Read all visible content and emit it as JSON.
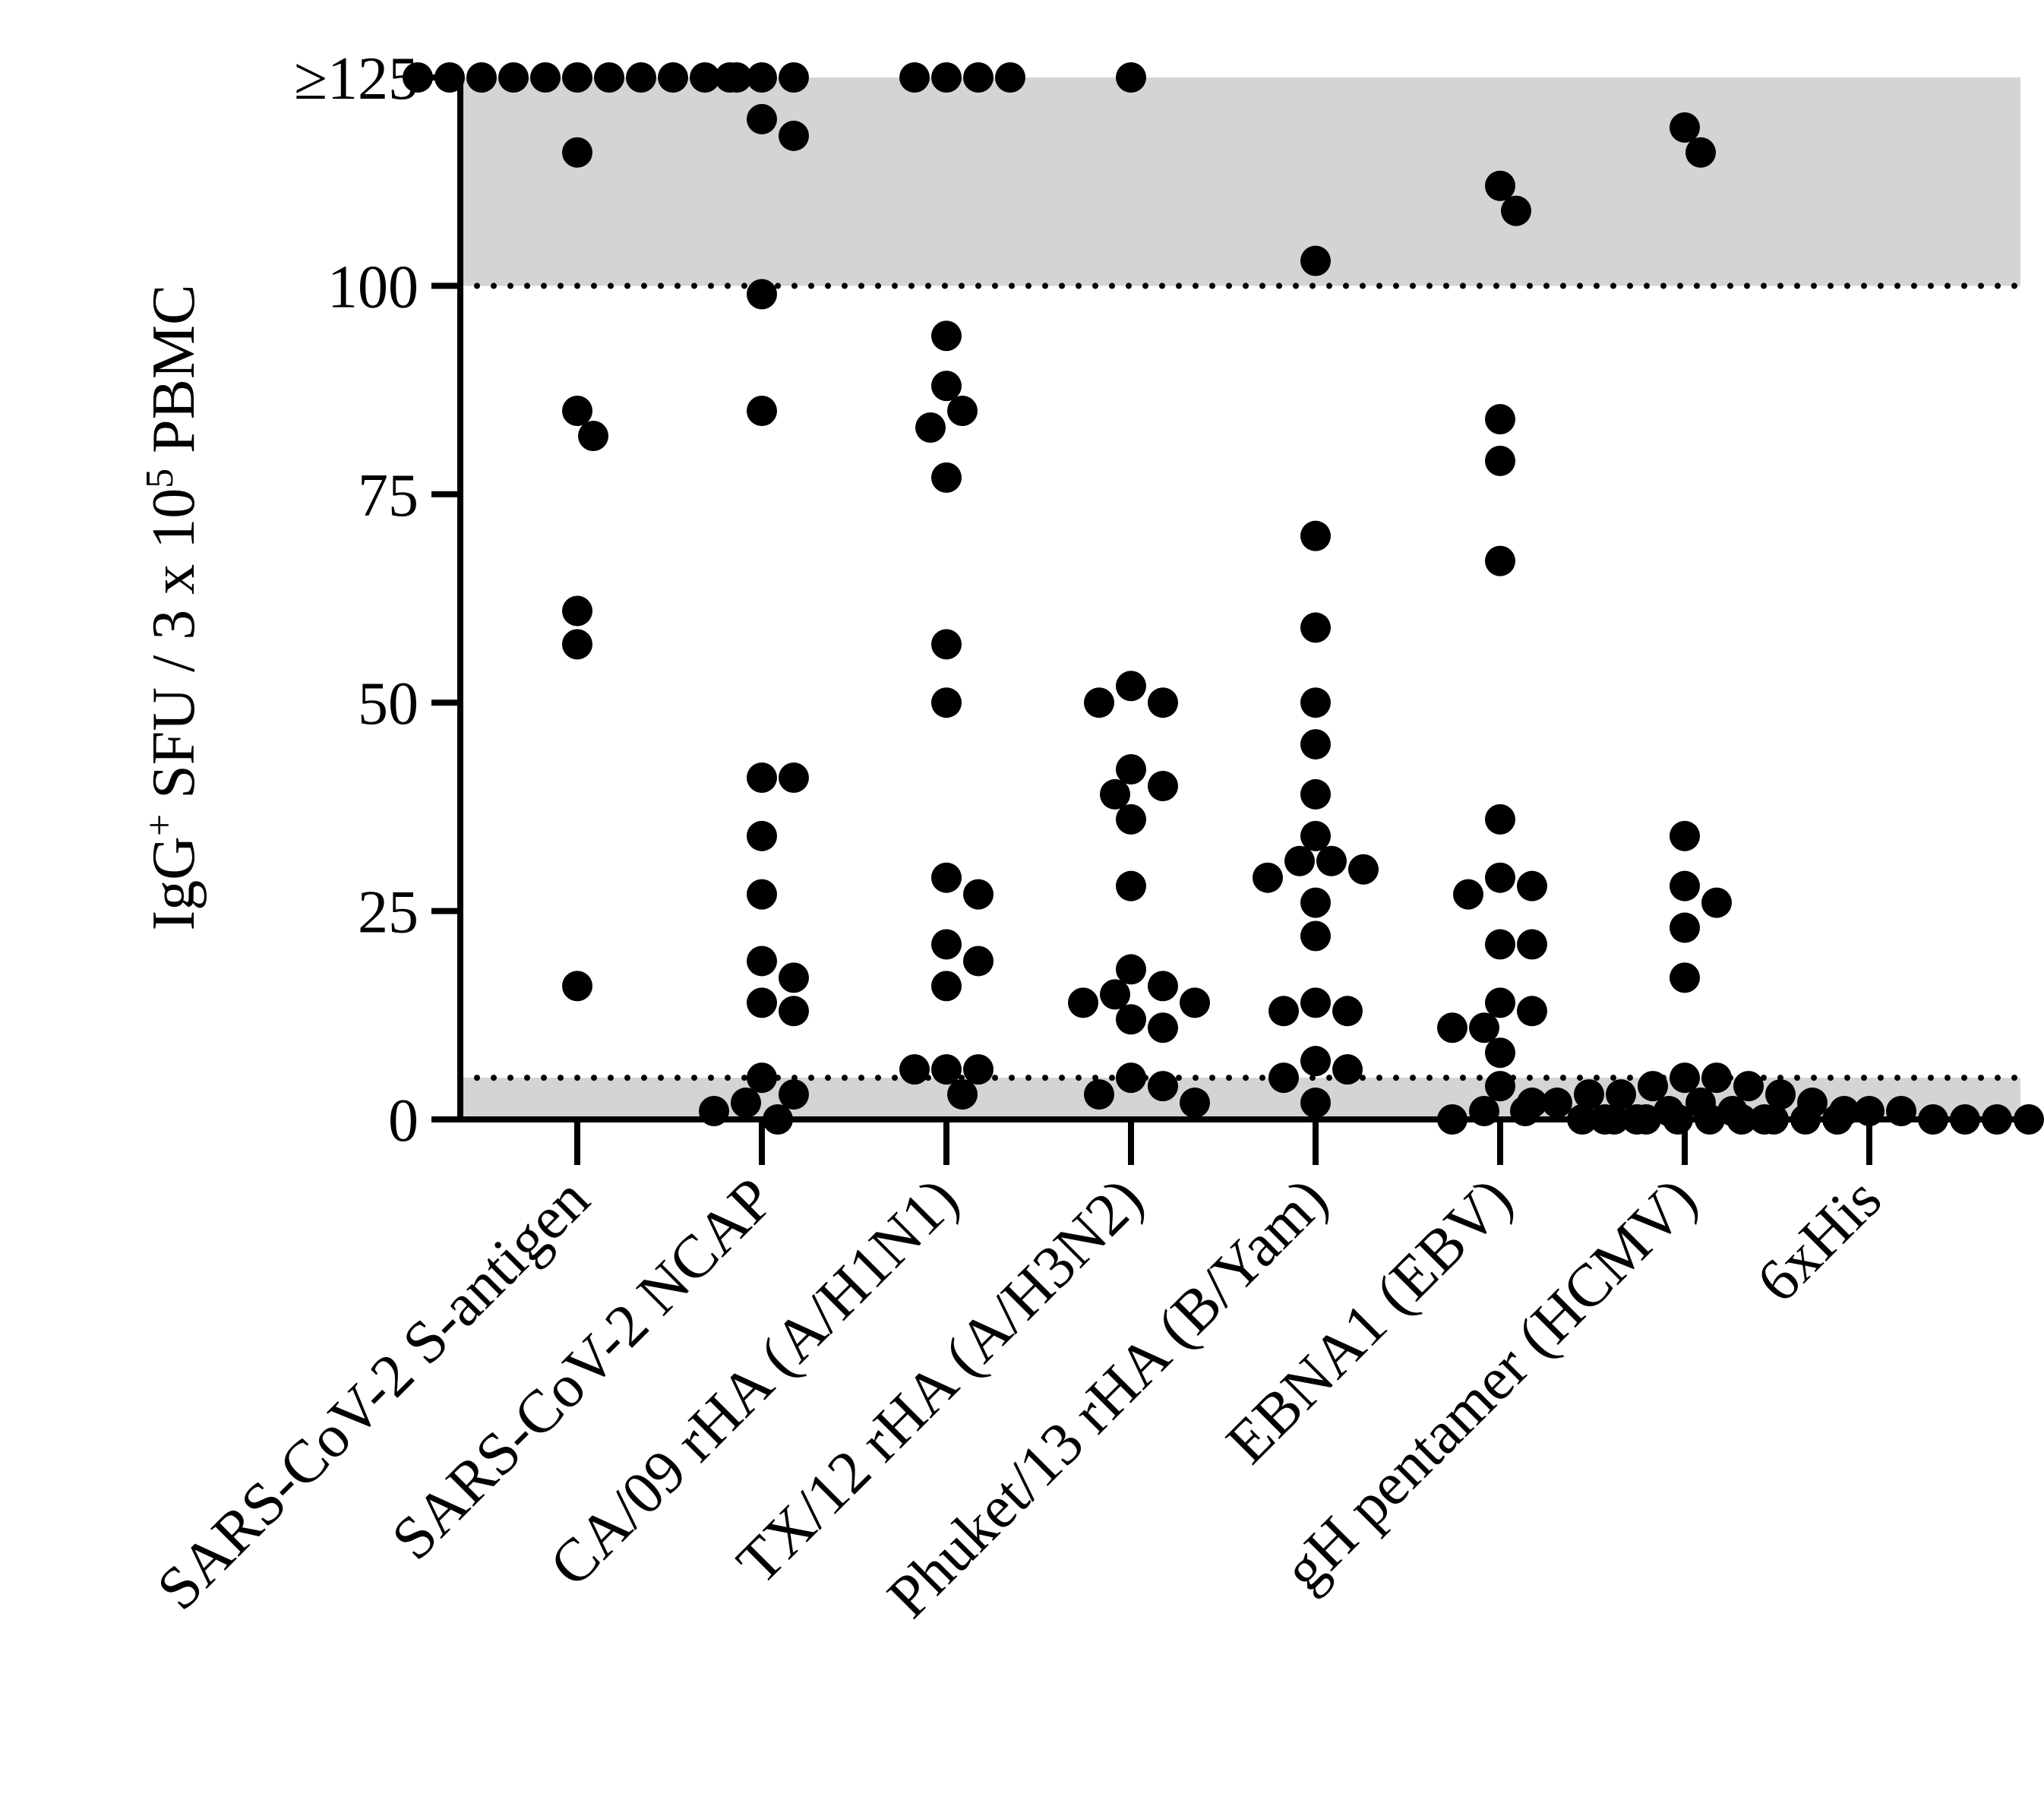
{
  "chart_data": {
    "type": "scatter",
    "ylabel_parts": [
      "IgG",
      "+",
      " SFU / 3 x 10",
      "5",
      " PBMC"
    ],
    "ylim": [
      0,
      125
    ],
    "yticks": [
      {
        "value": 0,
        "label": "0"
      },
      {
        "value": 25,
        "label": "25"
      },
      {
        "value": 50,
        "label": "50"
      },
      {
        "value": 75,
        "label": "75"
      },
      {
        "value": 100,
        "label": "100"
      },
      {
        "value": 125,
        "label": "≥125"
      }
    ],
    "shaded_regions": [
      [
        100,
        125
      ],
      [
        0,
        5
      ]
    ],
    "reference_lines": [
      100,
      5
    ],
    "categories": [
      "SARS-CoV-2 S-antigen",
      "SARS-CoV-2 NCAP",
      "CA/09 rHA (A/H1N1)",
      "TX/12 rHA (A/H3N2)",
      "Phuket/13 rHA (B/Yam)",
      "EBNA1 (EBV)",
      "gH pentamer (HCMV)",
      "6xHis"
    ],
    "series": [
      {
        "name": "SARS-CoV-2 S-antigen",
        "values": [
          125,
          125,
          125,
          125,
          125,
          125,
          125,
          125,
          125,
          125,
          125,
          116,
          85,
          82,
          61,
          57,
          16
        ]
      },
      {
        "name": "SARS-CoV-2 NCAP",
        "values": [
          125,
          125,
          125,
          120,
          118,
          99,
          85,
          41,
          41,
          34,
          27,
          19,
          17,
          14,
          13,
          5,
          3,
          2,
          1,
          0
        ]
      },
      {
        "name": "CA/09 rHA (A/H1N1)",
        "values": [
          125,
          125,
          125,
          125,
          94,
          88,
          85,
          83,
          77,
          57,
          50,
          29,
          27,
          21,
          19,
          16,
          6,
          6,
          6,
          3
        ]
      },
      {
        "name": "TX/12 rHA (A/H3N2)",
        "values": [
          125,
          52,
          50,
          50,
          42,
          40,
          39,
          36,
          28,
          18,
          16,
          15,
          14,
          14,
          12,
          11,
          5,
          4,
          3,
          2
        ]
      },
      {
        "name": "Phuket/13 rHA (B/Yam)",
        "values": [
          103,
          70,
          59,
          50,
          45,
          39,
          34,
          31,
          31,
          30,
          29,
          26,
          22,
          14,
          13,
          13,
          7,
          6,
          5,
          2
        ]
      },
      {
        "name": "EBNA1 (EBV)",
        "values": [
          112,
          109,
          84,
          79,
          67,
          36,
          29,
          28,
          27,
          21,
          21,
          14,
          13,
          11,
          11,
          8,
          4,
          2,
          1,
          0
        ]
      },
      {
        "name": "gH pentamer (HCMV)",
        "values": [
          119,
          116,
          34,
          28,
          26,
          23,
          17,
          5,
          5,
          4,
          4,
          3,
          3,
          3,
          2,
          2,
          2,
          1,
          1,
          1,
          1,
          0,
          0,
          0
        ]
      },
      {
        "name": "6xHis",
        "values": [
          0,
          0,
          0,
          0,
          0,
          0,
          0,
          0,
          0,
          0,
          0,
          0,
          0,
          0,
          0,
          0,
          0,
          0,
          1,
          1
        ]
      }
    ]
  }
}
